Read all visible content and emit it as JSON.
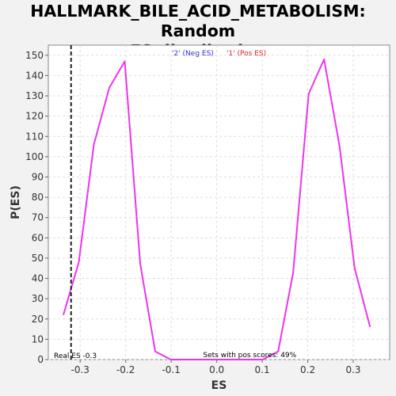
{
  "chart_data": {
    "type": "line",
    "title_line1": "HALLMARK_BILE_ACID_METABOLISM: Random",
    "title_line2": "ES distribution",
    "xlabel": "ES",
    "ylabel": "P(ES)",
    "xlim": [
      -0.37,
      0.38
    ],
    "ylim": [
      0,
      155
    ],
    "x_ticks": [
      -0.3,
      -0.2,
      -0.1,
      0.0,
      0.1,
      0.2,
      0.3
    ],
    "x_tick_labels": [
      "-0.3",
      "-0.2",
      "-0.1",
      "0.0",
      "0.1",
      "0.2",
      "0.3"
    ],
    "y_ticks": [
      0,
      10,
      20,
      30,
      40,
      50,
      60,
      70,
      80,
      90,
      100,
      110,
      120,
      130,
      140,
      150
    ],
    "grid": true,
    "legend": [
      {
        "name": "'2' (Neg ES)",
        "color": "#3333cc"
      },
      {
        "name": "'1' (Pos ES)",
        "color": "#dd2222"
      }
    ],
    "series": [
      {
        "color": "#ee33ee",
        "x": [
          -0.337,
          -0.303,
          -0.27,
          -0.236,
          -0.202,
          -0.168,
          -0.135,
          -0.101,
          -0.067,
          -0.034,
          0.0,
          0.034,
          0.067,
          0.101,
          0.135,
          0.168,
          0.202,
          0.236,
          0.27,
          0.303,
          0.337
        ],
        "y": [
          22,
          48,
          106,
          134,
          147,
          47,
          4,
          0,
          0,
          0,
          0,
          0,
          0,
          0,
          4,
          43,
          131,
          148,
          105,
          45,
          16
        ]
      }
    ],
    "real_es": -0.32,
    "real_es_label": "Real ES -0.3",
    "footer_annotation": "Sets with pos scores: 49%"
  }
}
